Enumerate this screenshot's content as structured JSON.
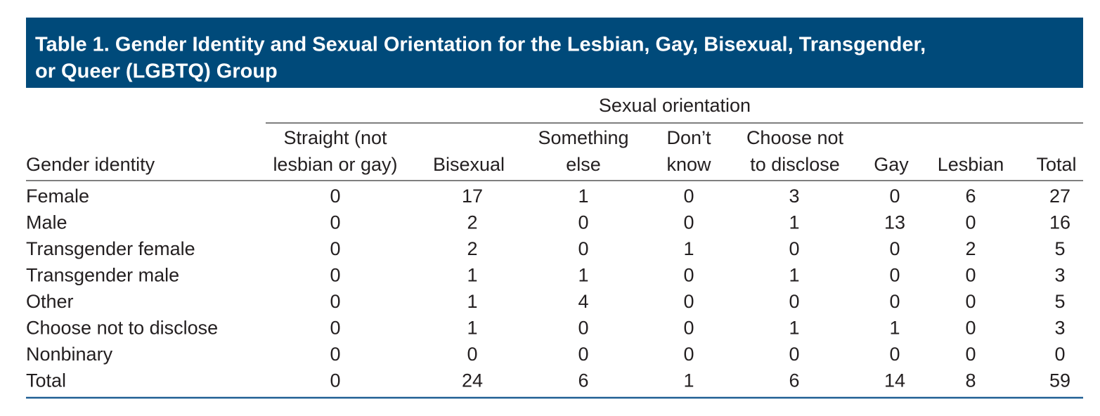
{
  "title": [
    "Table 1. Gender Identity and Sexual Orientation for the Lesbian, Gay, Bisexual, Transgender,",
    "or Queer (LGBTQ) Group"
  ],
  "table": {
    "group_header": "Sexual orientation",
    "row_header": "Gender identity",
    "columns": [
      [
        "Straight (not",
        "lesbian or gay)"
      ],
      [
        "Bisexual"
      ],
      [
        "Something",
        "else"
      ],
      [
        "Don’t",
        "know"
      ],
      [
        "Choose not",
        "to disclose"
      ],
      [
        "Gay"
      ],
      [
        "Lesbian"
      ],
      [
        "Total"
      ]
    ],
    "rows": [
      [
        "Female",
        0,
        17,
        1,
        0,
        3,
        0,
        6,
        27
      ],
      [
        "Male",
        0,
        2,
        0,
        0,
        1,
        13,
        0,
        16
      ],
      [
        "Transgender female",
        0,
        2,
        0,
        1,
        0,
        0,
        2,
        5
      ],
      [
        "Transgender male",
        0,
        1,
        1,
        0,
        1,
        0,
        0,
        3
      ],
      [
        "Other",
        0,
        1,
        4,
        0,
        0,
        0,
        0,
        5
      ],
      [
        "Choose not to disclose",
        0,
        1,
        0,
        0,
        1,
        1,
        0,
        3
      ],
      [
        "Nonbinary",
        0,
        0,
        0,
        0,
        0,
        0,
        0,
        0
      ],
      [
        "Total",
        0,
        24,
        6,
        1,
        6,
        14,
        8,
        59
      ]
    ]
  }
}
